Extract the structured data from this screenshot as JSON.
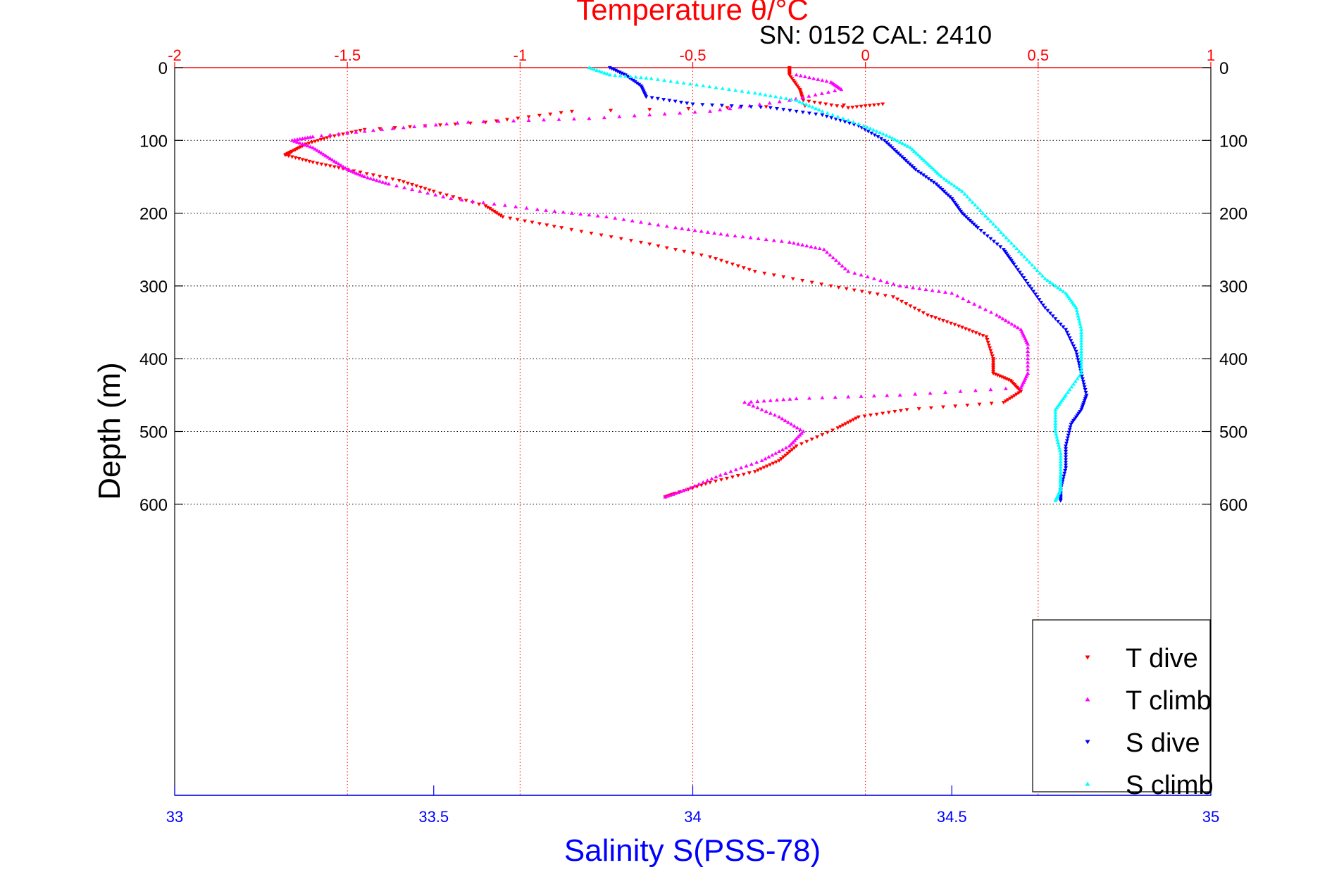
{
  "chart_data": {
    "type": "scatter",
    "title": "Temperature θ/°C",
    "subtitle": "SN: 0152  CAL: 2410",
    "ylabel": "Depth (m)",
    "xlabel": "Salinity S(PSS-78)",
    "top_axis": {
      "label": "Temperature θ/°C",
      "range": [
        -2,
        1
      ],
      "ticks": [
        -2,
        -1.5,
        -1,
        -0.5,
        0,
        0.5,
        1
      ],
      "tick_labels": [
        "-2",
        "-1.5",
        "-1",
        "-0.5",
        "0",
        "0.5",
        "1"
      ],
      "color": "#ff0000"
    },
    "bottom_axis": {
      "label": "Salinity S(PSS-78)",
      "range": [
        33,
        35
      ],
      "ticks": [
        33,
        33.5,
        34,
        34.5,
        35
      ],
      "tick_labels": [
        "33",
        "33.5",
        "34",
        "34.5",
        "35"
      ],
      "color": "#0000ff"
    },
    "y_axis": {
      "range": [
        0,
        1000
      ],
      "reversed": true,
      "ticks": [
        0,
        100,
        200,
        300,
        400,
        500,
        600
      ],
      "tick_labels": [
        "0",
        "100",
        "200",
        "300",
        "400",
        "500",
        "600"
      ]
    },
    "grid": true,
    "legend_position": "bottom-right",
    "series": [
      {
        "name": "T dive",
        "axis": "temperature",
        "color": "#ff0000",
        "marker": "triangle-down",
        "points": [
          [
            -0.22,
            0
          ],
          [
            -0.22,
            10
          ],
          [
            -0.19,
            30
          ],
          [
            -0.18,
            45
          ],
          [
            -0.05,
            55
          ],
          [
            0.05,
            50
          ],
          [
            -0.85,
            60
          ],
          [
            -1.1,
            75
          ],
          [
            -1.45,
            85
          ],
          [
            -1.55,
            95
          ],
          [
            -1.62,
            105
          ],
          [
            -1.66,
            115
          ],
          [
            -1.68,
            120
          ],
          [
            -1.6,
            130
          ],
          [
            -1.5,
            140
          ],
          [
            -1.35,
            155
          ],
          [
            -1.25,
            170
          ],
          [
            -1.1,
            190
          ],
          [
            -1.05,
            205
          ],
          [
            -0.88,
            220
          ],
          [
            -0.65,
            240
          ],
          [
            -0.45,
            260
          ],
          [
            -0.32,
            280
          ],
          [
            -0.1,
            300
          ],
          [
            0.08,
            315
          ],
          [
            0.18,
            340
          ],
          [
            0.27,
            355
          ],
          [
            0.35,
            370
          ],
          [
            0.37,
            400
          ],
          [
            0.37,
            420
          ],
          [
            0.42,
            430
          ],
          [
            0.45,
            445
          ],
          [
            0.4,
            460
          ],
          [
            0.12,
            470
          ],
          [
            -0.02,
            480
          ],
          [
            -0.08,
            495
          ],
          [
            -0.2,
            520
          ],
          [
            -0.25,
            540
          ],
          [
            -0.32,
            555
          ],
          [
            -0.45,
            570
          ],
          [
            -0.55,
            585
          ],
          [
            -0.58,
            590
          ]
        ]
      },
      {
        "name": "T climb",
        "axis": "temperature",
        "color": "#ff00ff",
        "marker": "triangle-up",
        "points": [
          [
            -0.2,
            10
          ],
          [
            -0.1,
            20
          ],
          [
            -0.07,
            30
          ],
          [
            -0.22,
            45
          ],
          [
            -0.45,
            60
          ],
          [
            -0.8,
            70
          ],
          [
            -1.15,
            75
          ],
          [
            -1.4,
            85
          ],
          [
            -1.6,
            95
          ],
          [
            -1.66,
            100
          ],
          [
            -1.6,
            110
          ],
          [
            -1.55,
            125
          ],
          [
            -1.5,
            140
          ],
          [
            -1.45,
            150
          ],
          [
            -1.38,
            160
          ],
          [
            -1.2,
            180
          ],
          [
            -0.95,
            195
          ],
          [
            -0.75,
            205
          ],
          [
            -0.55,
            220
          ],
          [
            -0.4,
            230
          ],
          [
            -0.22,
            240
          ],
          [
            -0.12,
            250
          ],
          [
            -0.05,
            280
          ],
          [
            0.1,
            300
          ],
          [
            0.25,
            310
          ],
          [
            0.38,
            340
          ],
          [
            0.45,
            360
          ],
          [
            0.47,
            380
          ],
          [
            0.47,
            420
          ],
          [
            0.45,
            440
          ],
          [
            0.1,
            450
          ],
          [
            -0.2,
            455
          ],
          [
            -0.35,
            460
          ],
          [
            -0.25,
            480
          ],
          [
            -0.18,
            500
          ],
          [
            -0.22,
            520
          ],
          [
            -0.3,
            540
          ],
          [
            -0.42,
            560
          ],
          [
            -0.52,
            580
          ],
          [
            -0.58,
            590
          ]
        ]
      },
      {
        "name": "S dive",
        "axis": "salinity",
        "color": "#0000ff",
        "marker": "triangle-down",
        "points": [
          [
            33.84,
            0
          ],
          [
            33.87,
            10
          ],
          [
            33.9,
            25
          ],
          [
            33.91,
            40
          ],
          [
            34.0,
            50
          ],
          [
            34.15,
            55
          ],
          [
            34.25,
            65
          ],
          [
            34.32,
            80
          ],
          [
            34.37,
            100
          ],
          [
            34.4,
            120
          ],
          [
            34.43,
            140
          ],
          [
            34.47,
            160
          ],
          [
            34.5,
            180
          ],
          [
            34.52,
            200
          ],
          [
            34.55,
            220
          ],
          [
            34.6,
            250
          ],
          [
            34.62,
            270
          ],
          [
            34.65,
            300
          ],
          [
            34.68,
            330
          ],
          [
            34.72,
            360
          ],
          [
            34.74,
            390
          ],
          [
            34.75,
            420
          ],
          [
            34.76,
            450
          ],
          [
            34.75,
            470
          ],
          [
            34.73,
            490
          ],
          [
            34.72,
            520
          ],
          [
            34.72,
            550
          ],
          [
            34.71,
            580
          ],
          [
            34.71,
            595
          ]
        ]
      },
      {
        "name": "S climb",
        "axis": "salinity",
        "color": "#00ffff",
        "marker": "triangle-up",
        "points": [
          [
            33.8,
            0
          ],
          [
            33.84,
            10
          ],
          [
            33.92,
            15
          ],
          [
            34.02,
            25
          ],
          [
            34.12,
            35
          ],
          [
            34.2,
            45
          ],
          [
            34.25,
            60
          ],
          [
            34.33,
            80
          ],
          [
            34.38,
            95
          ],
          [
            34.42,
            110
          ],
          [
            34.45,
            130
          ],
          [
            34.48,
            150
          ],
          [
            34.52,
            170
          ],
          [
            34.56,
            200
          ],
          [
            34.6,
            230
          ],
          [
            34.64,
            260
          ],
          [
            34.68,
            290
          ],
          [
            34.72,
            310
          ],
          [
            34.74,
            330
          ],
          [
            34.75,
            360
          ],
          [
            34.75,
            390
          ],
          [
            34.75,
            420
          ],
          [
            34.72,
            450
          ],
          [
            34.7,
            470
          ],
          [
            34.7,
            500
          ],
          [
            34.71,
            530
          ],
          [
            34.71,
            560
          ],
          [
            34.71,
            580
          ],
          [
            34.7,
            595
          ]
        ]
      }
    ]
  }
}
